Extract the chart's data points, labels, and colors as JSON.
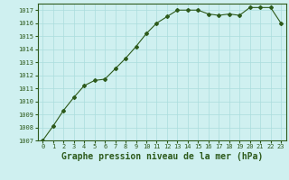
{
  "x": [
    0,
    1,
    2,
    3,
    4,
    5,
    6,
    7,
    8,
    9,
    10,
    11,
    12,
    13,
    14,
    15,
    16,
    17,
    18,
    19,
    20,
    21,
    22,
    23
  ],
  "y": [
    1007.0,
    1008.1,
    1009.3,
    1010.3,
    1011.2,
    1011.6,
    1011.7,
    1012.5,
    1013.3,
    1014.2,
    1015.2,
    1016.0,
    1016.5,
    1017.0,
    1017.0,
    1017.0,
    1016.7,
    1016.6,
    1016.7,
    1016.6,
    1017.2,
    1017.2,
    1017.2,
    1016.0
  ],
  "ylim": [
    1007,
    1017.5
  ],
  "yticks": [
    1007,
    1008,
    1009,
    1010,
    1011,
    1012,
    1013,
    1014,
    1015,
    1016,
    1017
  ],
  "xlim": [
    -0.5,
    23.5
  ],
  "xticks": [
    0,
    1,
    2,
    3,
    4,
    5,
    6,
    7,
    8,
    9,
    10,
    11,
    12,
    13,
    14,
    15,
    16,
    17,
    18,
    19,
    20,
    21,
    22,
    23
  ],
  "xlabel": "Graphe pression niveau de la mer (hPa)",
  "line_color": "#2d5a1b",
  "marker": "D",
  "marker_size": 2.0,
  "bg_color": "#cff0f0",
  "grid_color": "#aadddd",
  "tick_fontsize": 5.0,
  "xlabel_fontsize": 7.0,
  "linewidth": 0.8
}
